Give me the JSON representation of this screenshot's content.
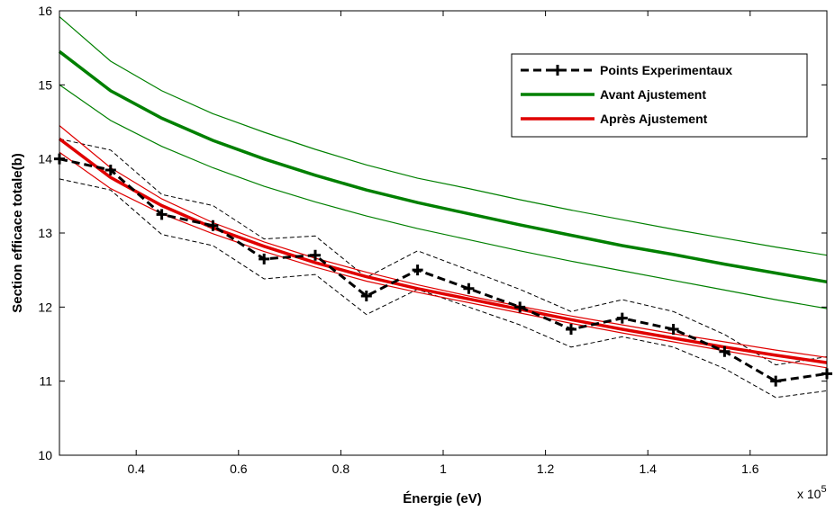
{
  "chart_data": {
    "type": "line",
    "xlabel": "Énergie (eV)",
    "ylabel": "Section efficace totale(b)",
    "x_multiplier_label": "x 10",
    "x_multiplier_exponent": "5",
    "xlim": [
      0.25,
      1.75
    ],
    "ylim": [
      10,
      16
    ],
    "x_ticks": [
      0.4,
      0.6,
      0.8,
      1.0,
      1.2,
      1.4,
      1.6
    ],
    "x_tick_labels": [
      "0.4",
      "0.6",
      "0.8",
      "1",
      "1.2",
      "1.4",
      "1.6"
    ],
    "y_ticks": [
      10,
      11,
      12,
      13,
      14,
      15,
      16
    ],
    "y_tick_labels": [
      "10",
      "11",
      "12",
      "13",
      "14",
      "15",
      "16"
    ],
    "grid": false,
    "legend_position": "top-right",
    "colors": {
      "experimental": "#000000",
      "avant": "#008000",
      "apres": "#e00000"
    },
    "series": [
      {
        "name": "Points Experimentaux",
        "style": "dashed-marker",
        "x": [
          0.25,
          0.35,
          0.45,
          0.55,
          0.65,
          0.75,
          0.85,
          0.95,
          1.05,
          1.15,
          1.25,
          1.35,
          1.45,
          1.55,
          1.65,
          1.75
        ],
        "values": [
          14.0,
          13.85,
          13.25,
          13.1,
          12.65,
          12.7,
          12.15,
          12.5,
          12.25,
          12.0,
          11.7,
          11.85,
          11.7,
          11.4,
          11.0,
          11.1
        ]
      },
      {
        "name": "Experimental upper bound",
        "style": "thin-dashed",
        "x": [
          0.25,
          0.35,
          0.45,
          0.55,
          0.65,
          0.75,
          0.85,
          0.95,
          1.05,
          1.15,
          1.25,
          1.35,
          1.45,
          1.55,
          1.65,
          1.75
        ],
        "values": [
          14.27,
          14.12,
          13.52,
          13.37,
          12.92,
          12.96,
          12.4,
          12.76,
          12.5,
          12.24,
          11.94,
          12.1,
          11.94,
          11.63,
          11.22,
          11.33
        ]
      },
      {
        "name": "Experimental lower bound",
        "style": "thin-dashed",
        "x": [
          0.25,
          0.35,
          0.45,
          0.55,
          0.65,
          0.75,
          0.85,
          0.95,
          1.05,
          1.15,
          1.25,
          1.35,
          1.45,
          1.55,
          1.65,
          1.75
        ],
        "values": [
          13.73,
          13.58,
          12.98,
          12.83,
          12.38,
          12.44,
          11.9,
          12.24,
          12.0,
          11.76,
          11.46,
          11.6,
          11.46,
          11.17,
          10.78,
          10.87
        ]
      },
      {
        "name": "Avant Ajustement",
        "style": "thick",
        "x": [
          0.25,
          0.35,
          0.45,
          0.55,
          0.65,
          0.75,
          0.85,
          0.95,
          1.05,
          1.15,
          1.25,
          1.35,
          1.45,
          1.55,
          1.65,
          1.75
        ],
        "values": [
          15.45,
          14.92,
          14.55,
          14.25,
          14.0,
          13.78,
          13.58,
          13.41,
          13.26,
          13.11,
          12.97,
          12.83,
          12.71,
          12.58,
          12.46,
          12.34
        ]
      },
      {
        "name": "Avant Ajustement upper bound",
        "style": "thin",
        "x": [
          0.25,
          0.35,
          0.45,
          0.55,
          0.65,
          0.75,
          0.85,
          0.95,
          1.05,
          1.15,
          1.25,
          1.35,
          1.45,
          1.55,
          1.65,
          1.75
        ],
        "values": [
          15.92,
          15.32,
          14.92,
          14.61,
          14.36,
          14.13,
          13.92,
          13.74,
          13.6,
          13.45,
          13.31,
          13.18,
          13.05,
          12.93,
          12.81,
          12.7
        ]
      },
      {
        "name": "Avant Ajustement lower bound",
        "style": "thin",
        "x": [
          0.25,
          0.35,
          0.45,
          0.55,
          0.65,
          0.75,
          0.85,
          0.95,
          1.05,
          1.15,
          1.25,
          1.35,
          1.45,
          1.55,
          1.65,
          1.75
        ],
        "values": [
          15.0,
          14.52,
          14.17,
          13.88,
          13.63,
          13.42,
          13.23,
          13.06,
          12.91,
          12.76,
          12.62,
          12.49,
          12.36,
          12.23,
          12.1,
          11.98
        ]
      },
      {
        "name": "Après Ajustement",
        "style": "thick",
        "x": [
          0.25,
          0.35,
          0.45,
          0.55,
          0.65,
          0.75,
          0.85,
          0.95,
          1.05,
          1.15,
          1.25,
          1.35,
          1.45,
          1.55,
          1.65,
          1.75
        ],
        "values": [
          14.27,
          13.75,
          13.37,
          13.07,
          12.82,
          12.6,
          12.41,
          12.25,
          12.11,
          11.97,
          11.83,
          11.7,
          11.58,
          11.46,
          11.35,
          11.25
        ]
      },
      {
        "name": "Après Ajustement upper bound",
        "style": "thin",
        "x": [
          0.25,
          0.35,
          0.45,
          0.55,
          0.65,
          0.75,
          0.85,
          0.95,
          1.05,
          1.15,
          1.25,
          1.35,
          1.45,
          1.55,
          1.65,
          1.75
        ],
        "values": [
          14.45,
          13.88,
          13.46,
          13.14,
          12.88,
          12.66,
          12.47,
          12.3,
          12.15,
          12.01,
          11.88,
          11.76,
          11.64,
          11.53,
          11.42,
          11.32
        ]
      },
      {
        "name": "Après Ajustement lower bound",
        "style": "thin",
        "x": [
          0.25,
          0.35,
          0.45,
          0.55,
          0.65,
          0.75,
          0.85,
          0.95,
          1.05,
          1.15,
          1.25,
          1.35,
          1.45,
          1.55,
          1.65,
          1.75
        ],
        "values": [
          14.09,
          13.6,
          13.26,
          12.99,
          12.75,
          12.54,
          12.35,
          12.2,
          12.06,
          11.92,
          11.78,
          11.65,
          11.53,
          11.41,
          11.29,
          11.18
        ]
      }
    ]
  },
  "legend": {
    "entries": [
      {
        "label": "Points Experimentaux",
        "series": "Points Experimentaux"
      },
      {
        "label": "Avant Ajustement",
        "series": "Avant Ajustement"
      },
      {
        "label": "Après Ajustement",
        "series": "Après Ajustement"
      }
    ]
  }
}
